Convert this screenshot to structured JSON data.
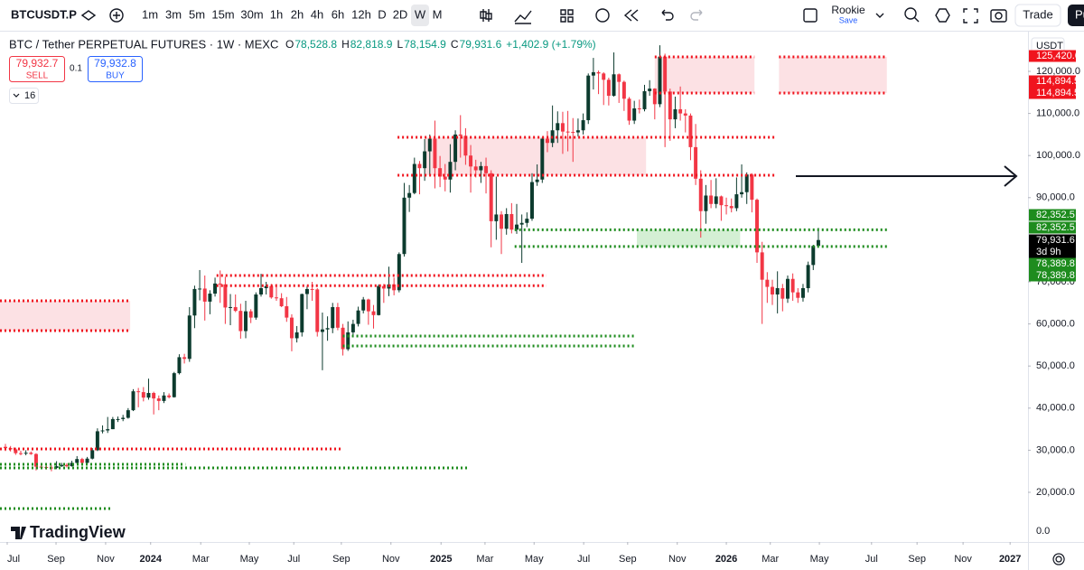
{
  "toolbar": {
    "symbol": "BTCUSDT.P",
    "intervals": [
      "1m",
      "3m",
      "5m",
      "15m",
      "30m",
      "1h",
      "2h",
      "4h",
      "6h",
      "12h",
      "D",
      "2D",
      "W",
      "M"
    ],
    "active_interval": "W",
    "profile": "Rookie",
    "save": "Save",
    "trade": "Trade",
    "cut_button": "Pu"
  },
  "legend": {
    "title": "BTC / Tether PERPETUAL FUTURES · 1W · MEXC",
    "ohlc": [
      {
        "key": "O",
        "value": "78,528.8"
      },
      {
        "key": "H",
        "value": "82,818.9"
      },
      {
        "key": "L",
        "value": "78,154.9"
      },
      {
        "key": "C",
        "value": "79,931.6"
      }
    ],
    "change": "+1,402.9 (+1.79%)",
    "sell_price": "79,932.7",
    "sell": "SELL",
    "quantity": "0.1",
    "buy_price": "79,932.8",
    "buy": "BUY",
    "indicators": "16"
  },
  "currency": "USDT",
  "logo": "TradingView",
  "chart_data": {
    "type": "candlestick",
    "up_color": "#0c3b2e",
    "down_color": "#f23645",
    "xlim": [
      -1.06,
      200
    ],
    "xticks": [
      {
        "value": 0.35,
        "label": "Jul"
      },
      {
        "value": 9.9,
        "label": "Sep"
      },
      {
        "value": 19.6,
        "label": "Nov"
      },
      {
        "value": 28.4,
        "label": "2024"
      },
      {
        "value": 38.2,
        "label": "Mar"
      },
      {
        "value": 47.7,
        "label": "May"
      },
      {
        "value": 56.4,
        "label": "Jul"
      },
      {
        "value": 65.7,
        "label": "Sep"
      },
      {
        "value": 75.4,
        "label": "Nov"
      },
      {
        "value": 85.2,
        "label": "2025"
      },
      {
        "value": 93.8,
        "label": "Mar"
      },
      {
        "value": 103.4,
        "label": "May"
      },
      {
        "value": 113.1,
        "label": "Jul"
      },
      {
        "value": 121.7,
        "label": "Sep"
      },
      {
        "value": 131.4,
        "label": "Nov"
      },
      {
        "value": 141.0,
        "label": "2026"
      },
      {
        "value": 149.6,
        "label": "Mar"
      },
      {
        "value": 159.2,
        "label": "May"
      },
      {
        "value": 169.4,
        "label": "Jul"
      },
      {
        "value": 178.3,
        "label": "Sep"
      },
      {
        "value": 187.3,
        "label": "Nov"
      },
      {
        "value": 196.5,
        "label": "2027"
      }
    ],
    "ylim": [
      15064,
      128369
    ],
    "yticks": [
      {
        "value": 20000,
        "label": "20,000.0"
      },
      {
        "value": 30000,
        "label": "30,000.0"
      },
      {
        "value": 40000,
        "label": "40,000.0"
      },
      {
        "value": 50000,
        "label": "50,000.0"
      },
      {
        "value": 60000,
        "label": "60,000.0"
      },
      {
        "value": 70000,
        "label": "70,000.0"
      },
      {
        "value": 90000,
        "label": "90,000.0"
      },
      {
        "value": 100000,
        "label": "100,000.0"
      },
      {
        "value": 110000,
        "label": "110,000.0"
      },
      {
        "value": 120000,
        "label": "120,000.0"
      }
    ],
    "volume_axis_label": "0.0",
    "ohlc": [
      [
        30800,
        31500,
        29800,
        30500
      ],
      [
        30500,
        31000,
        29700,
        30200
      ],
      [
        30200,
        30600,
        28900,
        29300
      ],
      [
        29300,
        29900,
        28800,
        29200
      ],
      [
        29200,
        30000,
        28800,
        29400
      ],
      [
        29400,
        29700,
        28900,
        29100
      ],
      [
        29100,
        29300,
        25200,
        26100
      ],
      [
        26100,
        26800,
        25800,
        26000
      ],
      [
        26000,
        26300,
        25400,
        25900
      ],
      [
        25900,
        26400,
        25000,
        25800
      ],
      [
        25800,
        27400,
        25500,
        26200
      ],
      [
        26200,
        27000,
        26000,
        26500
      ],
      [
        26500,
        26900,
        25900,
        26200
      ],
      [
        26200,
        27500,
        26100,
        27000
      ],
      [
        27000,
        28600,
        26800,
        27900
      ],
      [
        27900,
        28200,
        26600,
        27000
      ],
      [
        27000,
        28400,
        26700,
        28000
      ],
      [
        28000,
        30500,
        27800,
        30000
      ],
      [
        30000,
        35200,
        29800,
        34500
      ],
      [
        34500,
        35900,
        34000,
        34700
      ],
      [
        34700,
        37900,
        34100,
        35000
      ],
      [
        35000,
        37900,
        35000,
        37400
      ],
      [
        37400,
        38000,
        36700,
        37400
      ],
      [
        37400,
        38400,
        36900,
        37700
      ],
      [
        37700,
        40000,
        37500,
        39500
      ],
      [
        39500,
        44500,
        39300,
        44000
      ],
      [
        44000,
        44800,
        40200,
        43800
      ],
      [
        43800,
        45000,
        41600,
        42500
      ],
      [
        42500,
        47000,
        42000,
        43600
      ],
      [
        43600,
        43900,
        38500,
        42300
      ],
      [
        42300,
        43000,
        39500,
        41700
      ],
      [
        41700,
        43800,
        41200,
        43000
      ],
      [
        43000,
        43500,
        42300,
        42600
      ],
      [
        42600,
        48600,
        42500,
        48300
      ],
      [
        48300,
        52800,
        48000,
        52100
      ],
      [
        52100,
        52900,
        50600,
        51700
      ],
      [
        51700,
        64000,
        51000,
        62000
      ],
      [
        62000,
        69100,
        59000,
        68300
      ],
      [
        68300,
        72800,
        65600,
        68400
      ],
      [
        68400,
        71500,
        60800,
        65300
      ],
      [
        65300,
        68000,
        62300,
        67200
      ],
      [
        67200,
        71000,
        66500,
        69600
      ],
      [
        69600,
        72700,
        65000,
        69400
      ],
      [
        69400,
        71200,
        60000,
        63900
      ],
      [
        63900,
        67100,
        59700,
        64000
      ],
      [
        64000,
        67000,
        62800,
        63100
      ],
      [
        63100,
        64800,
        56500,
        58300
      ],
      [
        58300,
        65500,
        56600,
        63000
      ],
      [
        63000,
        63500,
        60200,
        61500
      ],
      [
        61500,
        67500,
        61000,
        67000
      ],
      [
        67000,
        71900,
        66500,
        68500
      ],
      [
        68500,
        70000,
        67000,
        69000
      ],
      [
        69000,
        69500,
        66000,
        66300
      ],
      [
        66300,
        69500,
        65500,
        66100
      ],
      [
        66100,
        67300,
        64000,
        64200
      ],
      [
        64200,
        66400,
        60500,
        61500
      ],
      [
        61500,
        62300,
        53500,
        56600
      ],
      [
        56600,
        59500,
        55600,
        58000
      ],
      [
        58000,
        67200,
        57000,
        67100
      ],
      [
        67100,
        69000,
        63500,
        68300
      ],
      [
        68300,
        70000,
        65500,
        68200
      ],
      [
        68200,
        68500,
        57000,
        58100
      ],
      [
        58100,
        62700,
        49000,
        58700
      ],
      [
        58700,
        61800,
        56000,
        59000
      ],
      [
        59000,
        65000,
        57800,
        64000
      ],
      [
        64000,
        65000,
        58500,
        59100
      ],
      [
        59100,
        60000,
        52500,
        54000
      ],
      [
        54000,
        60600,
        53600,
        58000
      ],
      [
        58000,
        61000,
        57000,
        60000
      ],
      [
        60000,
        64100,
        59400,
        63200
      ],
      [
        63200,
        66400,
        62500,
        65800
      ],
      [
        65800,
        66000,
        59800,
        63000
      ],
      [
        63000,
        64500,
        58900,
        62100
      ],
      [
        62100,
        69400,
        62000,
        69000
      ],
      [
        69000,
        69500,
        65000,
        68400
      ],
      [
        68400,
        73600,
        66600,
        69400
      ],
      [
        69400,
        71000,
        66800,
        68000
      ],
      [
        68000,
        77000,
        67500,
        76600
      ],
      [
        76600,
        93500,
        76000,
        90000
      ],
      [
        90000,
        93000,
        86600,
        91100
      ],
      [
        91100,
        99500,
        90800,
        98000
      ],
      [
        98000,
        98700,
        90800,
        97000
      ],
      [
        97000,
        103900,
        94000,
        101000
      ],
      [
        101000,
        105000,
        95500,
        104000
      ],
      [
        104000,
        108300,
        92200,
        97000
      ],
      [
        97000,
        99900,
        92500,
        95000
      ],
      [
        95000,
        98000,
        91500,
        94300
      ],
      [
        94300,
        102700,
        91200,
        98500
      ],
      [
        98500,
        106000,
        96500,
        105000
      ],
      [
        105000,
        109600,
        99500,
        104700
      ],
      [
        104700,
        106500,
        97800,
        100000
      ],
      [
        100000,
        102500,
        91200,
        97400
      ],
      [
        97400,
        99000,
        94800,
        96500
      ],
      [
        96500,
        98500,
        93500,
        97500
      ],
      [
        97500,
        99500,
        91000,
        95800
      ],
      [
        95800,
        96500,
        78200,
        84400
      ],
      [
        84400,
        95000,
        80000,
        86000
      ],
      [
        86000,
        86800,
        76600,
        82600
      ],
      [
        82600,
        87500,
        81200,
        86100
      ],
      [
        86100,
        88700,
        81500,
        82400
      ],
      [
        82400,
        88500,
        81400,
        83600
      ],
      [
        83600,
        86000,
        74500,
        84000
      ],
      [
        84000,
        86500,
        83000,
        85000
      ],
      [
        85000,
        95800,
        84500,
        93700
      ],
      [
        93700,
        97900,
        92800,
        94300
      ],
      [
        94300,
        104300,
        93500,
        104000
      ],
      [
        104000,
        105800,
        100800,
        103000
      ],
      [
        103000,
        111900,
        102000,
        106000
      ],
      [
        106000,
        110500,
        103000,
        107700
      ],
      [
        107700,
        110400,
        100400,
        105700
      ],
      [
        105700,
        110600,
        101000,
        105600
      ],
      [
        105600,
        108900,
        98500,
        105500
      ],
      [
        105500,
        108800,
        104500,
        106000
      ],
      [
        106000,
        110000,
        105000,
        108400
      ],
      [
        108400,
        119500,
        107500,
        119000
      ],
      [
        119000,
        123200,
        115700,
        119800
      ],
      [
        119800,
        120200,
        114600,
        119500
      ],
      [
        119500,
        119800,
        112000,
        118000
      ],
      [
        118000,
        118500,
        111900,
        114200
      ],
      [
        114200,
        124500,
        114000,
        119300
      ],
      [
        119300,
        119500,
        112500,
        117500
      ],
      [
        117500,
        117800,
        110600,
        113500
      ],
      [
        113500,
        113900,
        107300,
        108300
      ],
      [
        108300,
        113000,
        107500,
        111200
      ],
      [
        111200,
        113300,
        110000,
        111000
      ],
      [
        111000,
        116800,
        110500,
        115300
      ],
      [
        115300,
        117900,
        114200,
        115900
      ],
      [
        115900,
        116000,
        108600,
        112200
      ],
      [
        112200,
        126200,
        111500,
        123500
      ],
      [
        123500,
        124200,
        102000,
        115200
      ],
      [
        115200,
        115900,
        103500,
        108600
      ],
      [
        108600,
        114000,
        106500,
        111000
      ],
      [
        111000,
        116400,
        108300,
        110000
      ],
      [
        110000,
        111000,
        105500,
        109500
      ],
      [
        109500,
        110000,
        98900,
        102000
      ],
      [
        102000,
        107500,
        93000,
        94500
      ],
      [
        94500,
        96500,
        80500,
        86800
      ],
      [
        86800,
        93000,
        83800,
        90500
      ],
      [
        90500,
        94200,
        87500,
        88500
      ],
      [
        88500,
        94600,
        87500,
        90300
      ],
      [
        90300,
        90500,
        84500,
        88200
      ],
      [
        88200,
        90000,
        86000,
        88000
      ],
      [
        88000,
        89800,
        86500,
        87500
      ],
      [
        87500,
        94800,
        86800,
        90800
      ],
      [
        90800,
        97900,
        90000,
        91300
      ],
      [
        91300,
        96000,
        88500,
        95500
      ],
      [
        95500,
        95800,
        86500,
        89500
      ],
      [
        89500,
        89800,
        74500,
        77000
      ],
      [
        77000,
        79500,
        60000,
        70500
      ],
      [
        70500,
        72300,
        65000,
        68800
      ],
      [
        68800,
        70500,
        64500,
        67000
      ],
      [
        67000,
        72500,
        62500,
        68500
      ],
      [
        68500,
        69500,
        63000,
        66000
      ],
      [
        66000,
        71500,
        65000,
        70700
      ],
      [
        70700,
        72000,
        65500,
        67500
      ],
      [
        67500,
        68500,
        65000,
        66200
      ],
      [
        66200,
        69500,
        65300,
        68500
      ],
      [
        68500,
        74800,
        67500,
        74000
      ],
      [
        74000,
        78800,
        72800,
        78528.8
      ],
      [
        78528.8,
        82818.9,
        78154.9,
        79931.6
      ]
    ],
    "boxes": [
      {
        "top": 65494,
        "bottom": 58412,
        "start": -1.06,
        "end": 24.4,
        "color": "#fcdcdf"
      },
      {
        "top": 104335,
        "bottom": 95322,
        "start": 82,
        "end": 125.3,
        "color": "#fcdcdf"
      },
      {
        "top": 123433,
        "bottom": 114850,
        "start": 127,
        "end": 146.5,
        "color": "#fcdcdf"
      },
      {
        "top": 123433,
        "bottom": 114850,
        "start": 151.3,
        "end": 172.4,
        "color": "#fcdcdf"
      },
      {
        "top": 82352.5,
        "bottom": 78389.8,
        "start": 123.5,
        "end": 143.7,
        "color": "#cdeccd"
      }
    ],
    "levels": [
      {
        "price": 65494,
        "start": -1.06,
        "end": 24.4,
        "color": "#f0141e"
      },
      {
        "price": 58412,
        "start": -1.06,
        "end": 24.4,
        "color": "#f0141e"
      },
      {
        "price": 30300,
        "start": -1.06,
        "end": 66,
        "color": "#f0141e"
      },
      {
        "price": 71500,
        "start": 41.3,
        "end": 105.8,
        "color": "#f0141e"
      },
      {
        "price": 69100,
        "start": 41.3,
        "end": 105.8,
        "color": "#f0141e"
      },
      {
        "price": 104335,
        "start": 76.7,
        "end": 150.9,
        "color": "#f0141e"
      },
      {
        "price": 95322,
        "start": 76.7,
        "end": 150.9,
        "color": "#f0141e"
      },
      {
        "price": 123433,
        "start": 127,
        "end": 146.5,
        "color": "#f0141e"
      },
      {
        "price": 114850,
        "start": 127,
        "end": 146.5,
        "color": "#f0141e"
      },
      {
        "price": 123433,
        "start": 151.3,
        "end": 172.4,
        "color": "#f0141e"
      },
      {
        "price": 114850,
        "start": 151.3,
        "end": 172.4,
        "color": "#f0141e"
      },
      {
        "price": 82352.5,
        "start": 99.6,
        "end": 172.4,
        "color": "#1e8c1e"
      },
      {
        "price": 78389.8,
        "start": 99.6,
        "end": 172.4,
        "color": "#1e8c1e"
      },
      {
        "price": 57124,
        "start": 66,
        "end": 123,
        "color": "#1e8c1e"
      },
      {
        "price": 54764,
        "start": 66,
        "end": 123,
        "color": "#1e8c1e"
      },
      {
        "price": 26650,
        "start": -1.06,
        "end": 35.2,
        "color": "#1e8c1e"
      },
      {
        "price": 25800,
        "start": -1.06,
        "end": 90.8,
        "color": "#1e8c1e"
      },
      {
        "price": 16137,
        "start": -1.06,
        "end": 21,
        "color": "#1e8c1e"
      }
    ],
    "price_labels": [
      {
        "value": 125420,
        "label": "125,420.0",
        "color": "#f0141e"
      },
      {
        "value": 114894.5,
        "label": "114,894.5",
        "color": "#f0141e"
      },
      {
        "value": 114894.5,
        "label": "114,894.5",
        "color": "#f0141e"
      },
      {
        "value": 82352.5,
        "label": "82,352.5",
        "color": "#1e8c1e"
      },
      {
        "value": 82352.5,
        "label": "82,352.5",
        "color": "#1e8c1e"
      },
      {
        "value": 79931.6,
        "label": "79,931.6",
        "color": "#000000",
        "countdown": "3d 9h"
      },
      {
        "value": 78389.8,
        "label": "78,389.8",
        "color": "#1e8c1e"
      },
      {
        "value": 78389.8,
        "label": "78,389.8",
        "color": "#1e8c1e"
      }
    ]
  }
}
